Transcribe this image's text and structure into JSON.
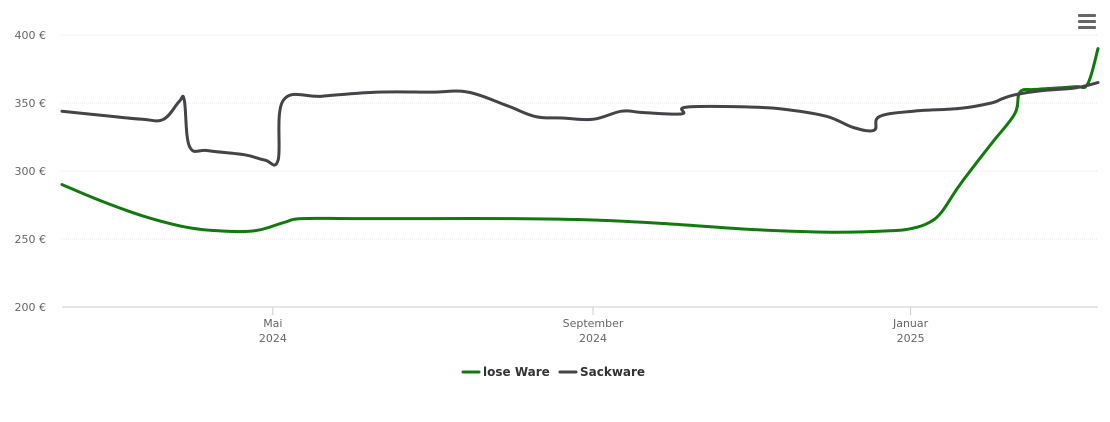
{
  "menu": {
    "icon": "hamburger-menu-icon"
  },
  "chart_data": {
    "type": "line",
    "title": "",
    "xlabel": "",
    "ylabel": "",
    "ylim": [
      200,
      400
    ],
    "y_ticks": [
      {
        "value": 200,
        "label": "200 €"
      },
      {
        "value": 250,
        "label": "250 €"
      },
      {
        "value": 300,
        "label": "300 €"
      },
      {
        "value": 350,
        "label": "350 €"
      },
      {
        "value": 400,
        "label": "400 €"
      }
    ],
    "xlim": [
      "2024-02-10",
      "2025-03-14"
    ],
    "x_ticks": [
      {
        "date": "2024-05-01",
        "month": "Mai",
        "year": "2024"
      },
      {
        "date": "2024-09-01",
        "month": "September",
        "year": "2024"
      },
      {
        "date": "2025-01-01",
        "month": "Januar",
        "year": "2025"
      }
    ],
    "grid": true,
    "legend_position": "bottom-center",
    "series": [
      {
        "name": "lose Ware",
        "color": "#117a0c",
        "points": [
          [
            "2024-02-10",
            290
          ],
          [
            "2024-02-25",
            278
          ],
          [
            "2024-03-12",
            267
          ],
          [
            "2024-03-28",
            259
          ],
          [
            "2024-04-10",
            256
          ],
          [
            "2024-04-24",
            256
          ],
          [
            "2024-05-05",
            262
          ],
          [
            "2024-05-12",
            265
          ],
          [
            "2024-06-01",
            265
          ],
          [
            "2024-07-01",
            265
          ],
          [
            "2024-08-01",
            265
          ],
          [
            "2024-09-01",
            264
          ],
          [
            "2024-10-01",
            261
          ],
          [
            "2024-11-01",
            257
          ],
          [
            "2024-12-01",
            255
          ],
          [
            "2024-12-24",
            256
          ],
          [
            "2025-01-02",
            258
          ],
          [
            "2025-01-08",
            262
          ],
          [
            "2025-01-13",
            270
          ],
          [
            "2025-01-20",
            290
          ],
          [
            "2025-02-01",
            320
          ],
          [
            "2025-02-10",
            342
          ],
          [
            "2025-02-12",
            358
          ],
          [
            "2025-02-18",
            360
          ],
          [
            "2025-03-05",
            362
          ],
          [
            "2025-03-10",
            364
          ],
          [
            "2025-03-14",
            390
          ]
        ]
      },
      {
        "name": "Sackware",
        "color": "#434348",
        "points": [
          [
            "2024-02-10",
            344
          ],
          [
            "2024-02-25",
            341
          ],
          [
            "2024-03-12",
            338
          ],
          [
            "2024-03-20",
            338
          ],
          [
            "2024-03-26",
            351
          ],
          [
            "2024-03-28",
            352
          ],
          [
            "2024-03-30",
            318
          ],
          [
            "2024-04-06",
            315
          ],
          [
            "2024-04-20",
            312
          ],
          [
            "2024-04-28",
            308
          ],
          [
            "2024-05-03",
            308
          ],
          [
            "2024-05-05",
            352
          ],
          [
            "2024-05-20",
            355
          ],
          [
            "2024-06-10",
            358
          ],
          [
            "2024-07-01",
            358
          ],
          [
            "2024-07-15",
            358
          ],
          [
            "2024-07-30",
            348
          ],
          [
            "2024-08-10",
            340
          ],
          [
            "2024-08-20",
            339
          ],
          [
            "2024-09-01",
            338
          ],
          [
            "2024-09-12",
            344
          ],
          [
            "2024-09-20",
            343
          ],
          [
            "2024-10-05",
            342
          ],
          [
            "2024-10-07",
            347
          ],
          [
            "2024-11-01",
            347
          ],
          [
            "2024-11-15",
            345
          ],
          [
            "2024-11-30",
            340
          ],
          [
            "2024-12-10",
            332
          ],
          [
            "2024-12-18",
            330
          ],
          [
            "2024-12-20",
            340
          ],
          [
            "2025-01-02",
            344
          ],
          [
            "2025-01-20",
            346
          ],
          [
            "2025-02-01",
            350
          ],
          [
            "2025-02-05",
            353
          ],
          [
            "2025-02-10",
            356
          ],
          [
            "2025-02-20",
            359
          ],
          [
            "2025-03-05",
            361
          ],
          [
            "2025-03-14",
            365
          ]
        ]
      }
    ]
  }
}
